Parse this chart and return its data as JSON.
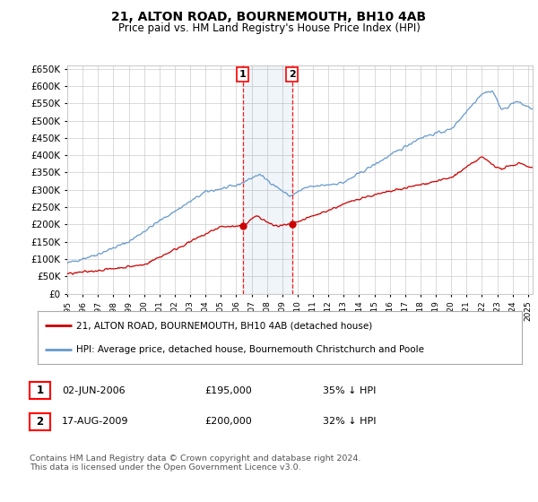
{
  "title": "21, ALTON ROAD, BOURNEMOUTH, BH10 4AB",
  "subtitle": "Price paid vs. HM Land Registry's House Price Index (HPI)",
  "hpi_color": "#6699cc",
  "price_color": "#cc0000",
  "background_color": "#ffffff",
  "grid_color": "#cccccc",
  "legend1": "21, ALTON ROAD, BOURNEMOUTH, BH10 4AB (detached house)",
  "legend2": "HPI: Average price, detached house, Bournemouth Christchurch and Poole",
  "footer": "Contains HM Land Registry data © Crown copyright and database right 2024.\nThis data is licensed under the Open Government Licence v3.0.",
  "ylim": [
    0,
    660000
  ],
  "yticks": [
    0,
    50000,
    100000,
    150000,
    200000,
    250000,
    300000,
    350000,
    400000,
    450000,
    500000,
    550000,
    600000,
    650000
  ],
  "sale1_year": 2006.42,
  "sale1_price": 195000,
  "sale2_year": 2009.63,
  "sale2_price": 200000,
  "xlim_start": 1995,
  "xlim_end": 2025.3
}
